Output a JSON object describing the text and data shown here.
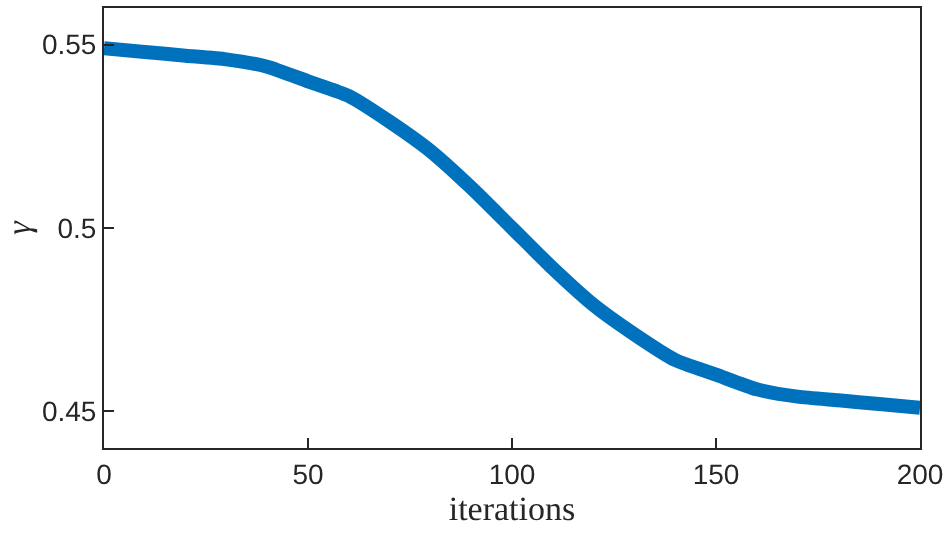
{
  "chart_data": {
    "type": "line",
    "xlabel": "iterations",
    "ylabel": "γ",
    "x": [
      0,
      10,
      20,
      30,
      40,
      50,
      60,
      70,
      80,
      90,
      100,
      110,
      120,
      130,
      140,
      150,
      160,
      170,
      180,
      190,
      200
    ],
    "series": [
      {
        "color": "#0072bd",
        "values": [
          0.549,
          0.548,
          0.547,
          0.546,
          0.544,
          0.54,
          0.536,
          0.529,
          0.521,
          0.511,
          0.5,
          0.489,
          0.479,
          0.471,
          0.464,
          0.46,
          0.456,
          0.454,
          0.453,
          0.452,
          0.451
        ]
      }
    ],
    "xlim": [
      0,
      200
    ],
    "xticks": [
      0,
      50,
      100,
      150,
      200
    ],
    "ylim": [
      0.44,
      0.56
    ],
    "yticks": [
      0.45,
      0.5,
      0.55
    ],
    "grid": false,
    "marker": "none",
    "line_style": "solid"
  }
}
